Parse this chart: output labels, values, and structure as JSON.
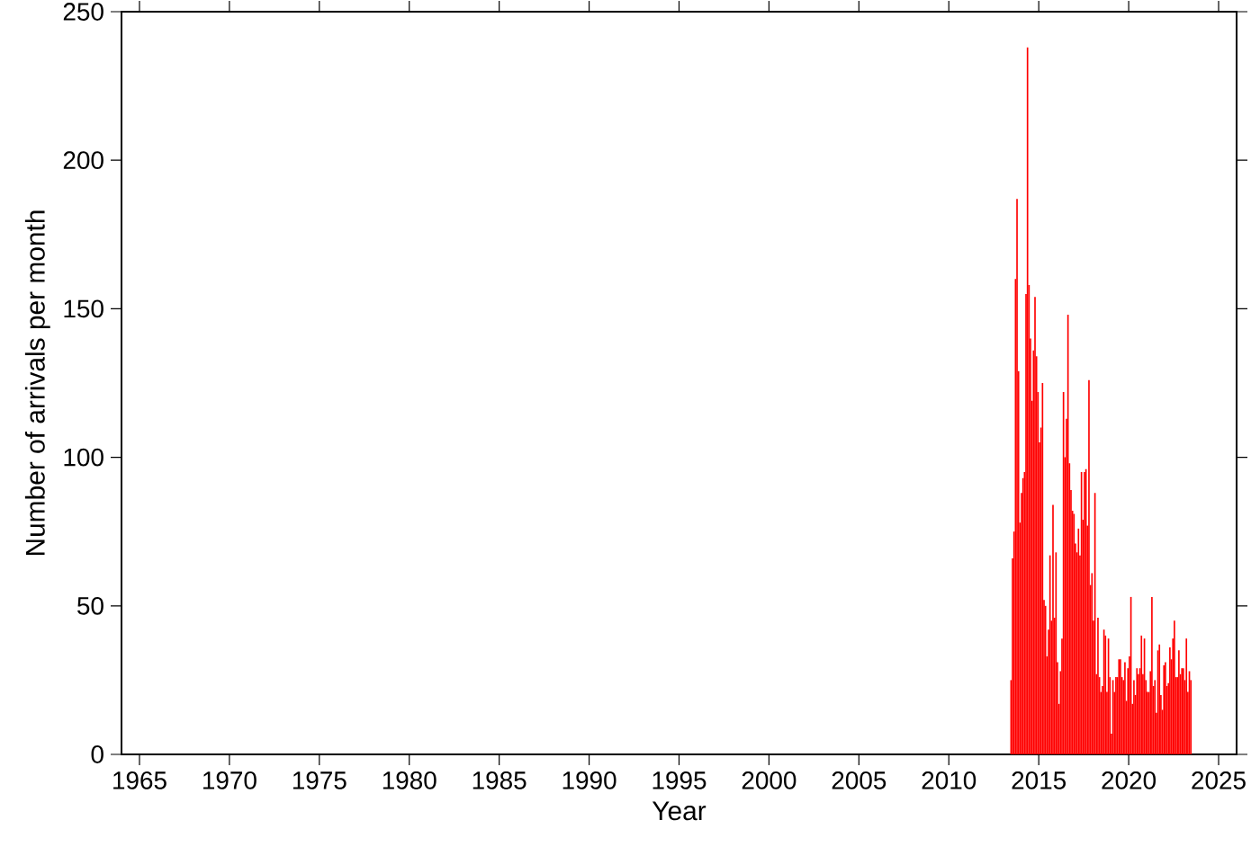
{
  "chart_data": {
    "type": "histogram",
    "xlabel": "Year",
    "ylabel": "Number of arrivals per month",
    "color": "#ff0000",
    "bins": [
      2013.417,
      2013.5,
      2013.583,
      2013.667,
      2013.75,
      2013.833,
      2013.917,
      2014.0,
      2014.083,
      2014.167,
      2014.25,
      2014.333,
      2014.417,
      2014.5,
      2014.583,
      2014.667,
      2014.75,
      2014.833,
      2014.917,
      2015.0,
      2015.083,
      2015.167,
      2015.25,
      2015.333,
      2015.417,
      2015.5,
      2015.583,
      2015.667,
      2015.75,
      2015.833,
      2015.917,
      2016.0,
      2016.083,
      2016.167,
      2016.25,
      2016.333,
      2016.417,
      2016.5,
      2016.583,
      2016.667,
      2016.75,
      2016.833,
      2016.917,
      2017.0,
      2017.083,
      2017.167,
      2017.25,
      2017.333,
      2017.417,
      2017.5,
      2017.583,
      2017.667,
      2017.75,
      2017.833,
      2017.917,
      2018.0,
      2018.083,
      2018.167,
      2018.25,
      2018.333,
      2018.417,
      2018.5,
      2018.583,
      2018.667,
      2018.75,
      2018.833,
      2018.917,
      2019.0,
      2019.083,
      2019.167,
      2019.25,
      2019.333,
      2019.417,
      2019.5,
      2019.583,
      2019.667,
      2019.75,
      2019.833,
      2019.917,
      2020.0,
      2020.083,
      2020.167,
      2020.25,
      2020.333,
      2020.417,
      2020.5,
      2020.583,
      2020.667,
      2020.75,
      2020.833,
      2020.917,
      2021.0,
      2021.083,
      2021.167,
      2021.25,
      2021.333,
      2021.417,
      2021.5,
      2021.583,
      2021.667,
      2021.75,
      2021.833,
      2021.917,
      2022.0,
      2022.083,
      2022.167,
      2022.25,
      2022.333,
      2022.417,
      2022.5,
      2022.583,
      2022.667,
      2022.75,
      2022.833,
      2022.917,
      2023.0,
      2023.083,
      2023.167,
      2023.25,
      2023.333,
      2023.417,
      2023.5
    ],
    "values": [
      25,
      66,
      75,
      160,
      187,
      129,
      78,
      88,
      93,
      95,
      155,
      238,
      158,
      140,
      119,
      136,
      154,
      134,
      122,
      105,
      110,
      125,
      52,
      50,
      33,
      42,
      67,
      45,
      84,
      46,
      68,
      31,
      17,
      28,
      39,
      122,
      100,
      113,
      148,
      98,
      89,
      82,
      81,
      71,
      68,
      76,
      67,
      95,
      79,
      95,
      96,
      77,
      126,
      57,
      61,
      45,
      88,
      27,
      46,
      26,
      21,
      23,
      42,
      40,
      21,
      39,
      26,
      7,
      25,
      21,
      26,
      26,
      32,
      32,
      26,
      25,
      31,
      18,
      29,
      33,
      53,
      17,
      25,
      20,
      29,
      27,
      29,
      40,
      27,
      39,
      25,
      21,
      21,
      28,
      53,
      23,
      25,
      14,
      35,
      37,
      20,
      15,
      30,
      31,
      23,
      24,
      36,
      32,
      39,
      45,
      26,
      26,
      35,
      27,
      29,
      29,
      25,
      39,
      21,
      28,
      25
    ],
    "xlim": [
      1964,
      2026
    ],
    "ylim": [
      0,
      250
    ],
    "xticks": [
      1965,
      1970,
      1975,
      1980,
      1985,
      1990,
      1995,
      2000,
      2005,
      2010,
      2015,
      2020,
      2025
    ],
    "yticks": [
      0,
      50,
      100,
      150,
      200,
      250
    ]
  }
}
